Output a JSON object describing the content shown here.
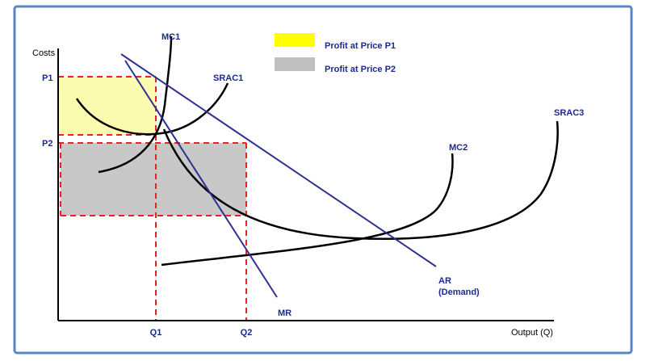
{
  "axes": {
    "y_label": "Costs",
    "x_label": "Output (Q)"
  },
  "prices": [
    "P1",
    "P2"
  ],
  "quantities": [
    "Q1",
    "Q2"
  ],
  "curves": {
    "mc1": "MC1",
    "srac1": "SRAC1",
    "mc2": "MC2",
    "srac3": "SRAC3",
    "ar": "AR",
    "ar_note": "(Demand)",
    "mr": "MR"
  },
  "legend": [
    "Profit at Price P1",
    "Profit at Price P2"
  ]
}
